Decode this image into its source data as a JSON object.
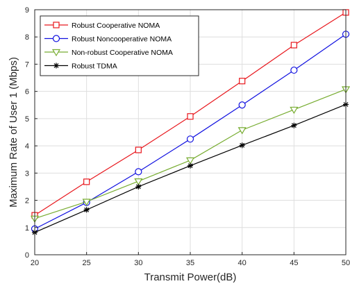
{
  "chart_data": {
    "type": "line",
    "title": "",
    "xlabel": "Transmit Power(dB)",
    "ylabel": "Maximum Rate of User 1 (Mbps)",
    "xlim": [
      20,
      50
    ],
    "ylim": [
      0,
      9
    ],
    "xticks": [
      "20",
      "25",
      "30",
      "35",
      "40",
      "45",
      "50"
    ],
    "yticks": [
      "0",
      "1",
      "2",
      "3",
      "4",
      "5",
      "6",
      "7",
      "8",
      "9"
    ],
    "grid": true,
    "legend": "top-left",
    "x": [
      20,
      25,
      30,
      35,
      40,
      45,
      50
    ],
    "series": [
      {
        "name": "Robust Cooperative NOMA",
        "color": "#e8161c",
        "marker": "square",
        "values": [
          1.45,
          2.68,
          3.85,
          5.08,
          6.38,
          7.7,
          8.9
        ]
      },
      {
        "name": "Robust Noncooperative NOMA",
        "color": "#1010e0",
        "marker": "circle",
        "values": [
          0.95,
          1.92,
          3.05,
          4.25,
          5.5,
          6.78,
          8.1
        ]
      },
      {
        "name": "Non-robust Cooperative NOMA",
        "color": "#77ac30",
        "marker": "triangle-down",
        "values": [
          1.33,
          1.95,
          2.7,
          3.47,
          4.58,
          5.33,
          6.08
        ]
      },
      {
        "name": "Robust TDMA",
        "color": "#000000",
        "marker": "star",
        "values": [
          0.82,
          1.65,
          2.5,
          3.27,
          4.02,
          4.75,
          5.52
        ]
      }
    ]
  }
}
